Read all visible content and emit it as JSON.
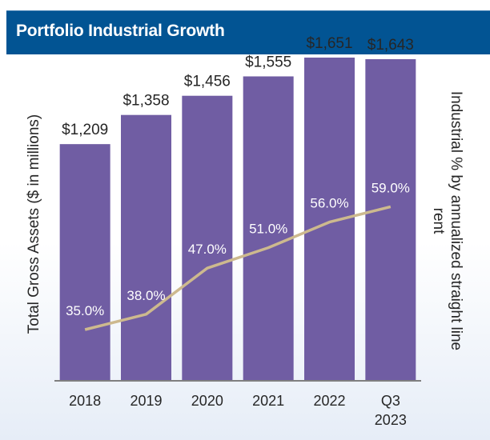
{
  "header": {
    "title": "Portfolio Industrial Growth"
  },
  "colors": {
    "header_bg": "#025493",
    "bar": "#705DA3",
    "line": "#CDB98E",
    "axis": "#7f7f7f",
    "text": "#262626",
    "pct_label": "#ffffff"
  },
  "chart_data": {
    "type": "bar",
    "title": "Portfolio Industrial Growth",
    "categories": [
      "2018",
      "2019",
      "2020",
      "2021",
      "2022",
      "Q3 2023"
    ],
    "category_lines": [
      [
        "2018"
      ],
      [
        "2019"
      ],
      [
        "2020"
      ],
      [
        "2021"
      ],
      [
        "2022"
      ],
      [
        "Q3",
        "2023"
      ]
    ],
    "series": [
      {
        "name": "Total Gross Assets ($ in millions)",
        "type": "bar",
        "axis": "left",
        "values": [
          1209,
          1358,
          1456,
          1555,
          1651,
          1643
        ],
        "labels": [
          "$1,209",
          "$1,358",
          "$1,456",
          "$1,555",
          "$1,651",
          "$1,643"
        ]
      },
      {
        "name": "Industrial % by annualized straight line rent",
        "type": "line",
        "axis": "right",
        "values": [
          35.0,
          38.0,
          47.0,
          51.0,
          56.0,
          59.0
        ],
        "labels": [
          "35.0%",
          "38.0%",
          "47.0%",
          "51.0%",
          "56.0%",
          "59.0%"
        ]
      }
    ],
    "ylabel": "Total Gross Assets ($ in millions)",
    "y2label": "Industrial % by annualized straight line rent",
    "ylim": [
      0,
      1700
    ],
    "y2lim": [
      25,
      90
    ],
    "grid": false,
    "legend": "none"
  }
}
